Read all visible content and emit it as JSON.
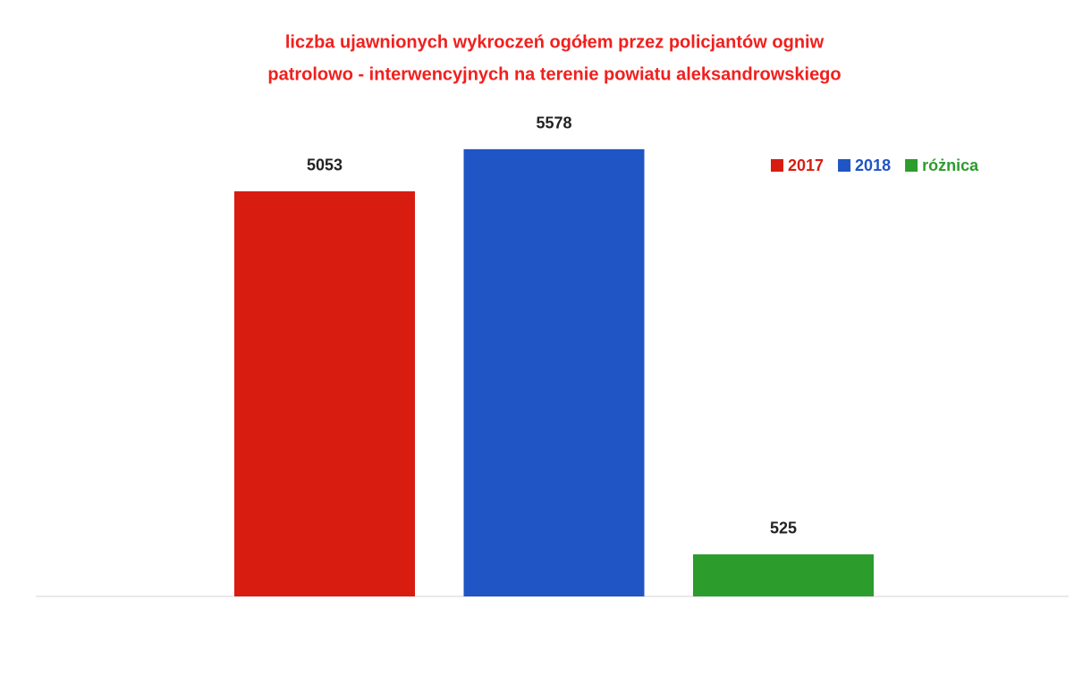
{
  "chart_data": {
    "type": "bar",
    "title": [
      "liczba ujawnionych wykroczeń ogółem przez policjantów ogniw",
      "patrolowo - interwencyjnych na terenie powiatu aleksandrowskiego"
    ],
    "series": [
      {
        "name": "2017",
        "color": "#d81c10",
        "values": [
          5053
        ]
      },
      {
        "name": "2018",
        "color": "#1f55c4",
        "values": [
          5578
        ]
      },
      {
        "name": "różnica",
        "color": "#2c9c2c",
        "values": [
          525
        ]
      }
    ],
    "ylim": [
      0,
      6000
    ],
    "legend": "top-right"
  }
}
